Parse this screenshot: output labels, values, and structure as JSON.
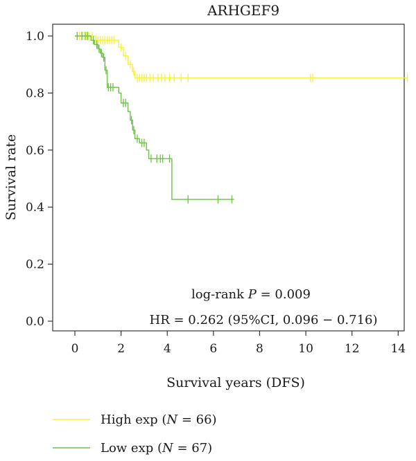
{
  "chart_data": {
    "type": "line",
    "title": "ARHGEF9",
    "xlabel": "Survival years (DFS)",
    "ylabel": "Survival rate",
    "xlim": [
      0,
      14.5
    ],
    "ylim": [
      0,
      1.0
    ],
    "x_ticks": [
      "0",
      "2",
      "4",
      "6",
      "8",
      "10",
      "12",
      "14"
    ],
    "y_ticks": [
      "0.0",
      "0.2",
      "0.4",
      "0.6",
      "0.8",
      "1.0"
    ],
    "annotation_pvalue": {
      "prefix": "log-rank ",
      "italic": "P",
      "suffix": " = 0.009"
    },
    "annotation_hr": "HR = 0.262 (95%CI, 0.096 − 0.716)",
    "series": [
      {
        "name": {
          "prefix": "High exp (",
          "italic": "N",
          "suffix": " = 66)"
        },
        "color": "#f5f03c",
        "steps": [
          [
            0,
            1.0
          ],
          [
            0.9,
            0.985
          ],
          [
            1.9,
            0.96
          ],
          [
            2.1,
            0.93
          ],
          [
            2.3,
            0.9
          ],
          [
            2.5,
            0.875
          ],
          [
            2.6,
            0.853
          ],
          [
            14.4,
            0.853
          ]
        ],
        "censors": [
          [
            0.2,
            1.0
          ],
          [
            0.35,
            1.0
          ],
          [
            0.5,
            1.0
          ],
          [
            0.6,
            1.0
          ],
          [
            0.75,
            1.0
          ],
          [
            0.9,
            0.985
          ],
          [
            1.0,
            0.985
          ],
          [
            1.1,
            0.985
          ],
          [
            1.2,
            0.985
          ],
          [
            1.3,
            0.985
          ],
          [
            1.4,
            0.985
          ],
          [
            1.5,
            0.985
          ],
          [
            1.6,
            0.985
          ],
          [
            1.7,
            0.985
          ],
          [
            2.0,
            0.96
          ],
          [
            2.2,
            0.93
          ],
          [
            2.4,
            0.9
          ],
          [
            2.55,
            0.875
          ],
          [
            2.7,
            0.853
          ],
          [
            2.8,
            0.853
          ],
          [
            2.9,
            0.853
          ],
          [
            3.0,
            0.853
          ],
          [
            3.1,
            0.853
          ],
          [
            3.25,
            0.853
          ],
          [
            3.4,
            0.853
          ],
          [
            3.6,
            0.853
          ],
          [
            3.75,
            0.853
          ],
          [
            3.9,
            0.853
          ],
          [
            4.1,
            0.853
          ],
          [
            4.3,
            0.853
          ],
          [
            4.6,
            0.853
          ],
          [
            4.9,
            0.853
          ],
          [
            10.2,
            0.853
          ],
          [
            10.3,
            0.853
          ],
          [
            14.4,
            0.853
          ]
        ]
      },
      {
        "name": {
          "prefix": "Low exp (",
          "italic": "N",
          "suffix": " = 67)"
        },
        "color": "#6cbf4a",
        "steps": [
          [
            0,
            1.0
          ],
          [
            0.7,
            0.985
          ],
          [
            0.85,
            0.97
          ],
          [
            1.0,
            0.955
          ],
          [
            1.1,
            0.94
          ],
          [
            1.2,
            0.925
          ],
          [
            1.3,
            0.88
          ],
          [
            1.4,
            0.82
          ],
          [
            1.9,
            0.8
          ],
          [
            2.0,
            0.765
          ],
          [
            2.3,
            0.735
          ],
          [
            2.4,
            0.705
          ],
          [
            2.5,
            0.67
          ],
          [
            2.6,
            0.64
          ],
          [
            2.8,
            0.625
          ],
          [
            3.1,
            0.6
          ],
          [
            3.2,
            0.57
          ],
          [
            4.2,
            0.427
          ],
          [
            6.9,
            0.427
          ]
        ],
        "censors": [
          [
            0.1,
            1.0
          ],
          [
            0.3,
            1.0
          ],
          [
            0.45,
            1.0
          ],
          [
            0.55,
            1.0
          ],
          [
            0.8,
            0.985
          ],
          [
            0.95,
            0.97
          ],
          [
            1.05,
            0.955
          ],
          [
            1.15,
            0.94
          ],
          [
            1.25,
            0.925
          ],
          [
            1.35,
            0.88
          ],
          [
            1.45,
            0.82
          ],
          [
            1.55,
            0.82
          ],
          [
            1.65,
            0.82
          ],
          [
            2.1,
            0.765
          ],
          [
            2.2,
            0.765
          ],
          [
            2.45,
            0.705
          ],
          [
            2.55,
            0.67
          ],
          [
            2.7,
            0.64
          ],
          [
            2.9,
            0.625
          ],
          [
            3.0,
            0.625
          ],
          [
            3.3,
            0.57
          ],
          [
            3.55,
            0.57
          ],
          [
            3.7,
            0.57
          ],
          [
            3.8,
            0.57
          ],
          [
            4.1,
            0.57
          ],
          [
            4.9,
            0.427
          ],
          [
            6.2,
            0.427
          ],
          [
            6.8,
            0.427
          ]
        ]
      }
    ]
  }
}
